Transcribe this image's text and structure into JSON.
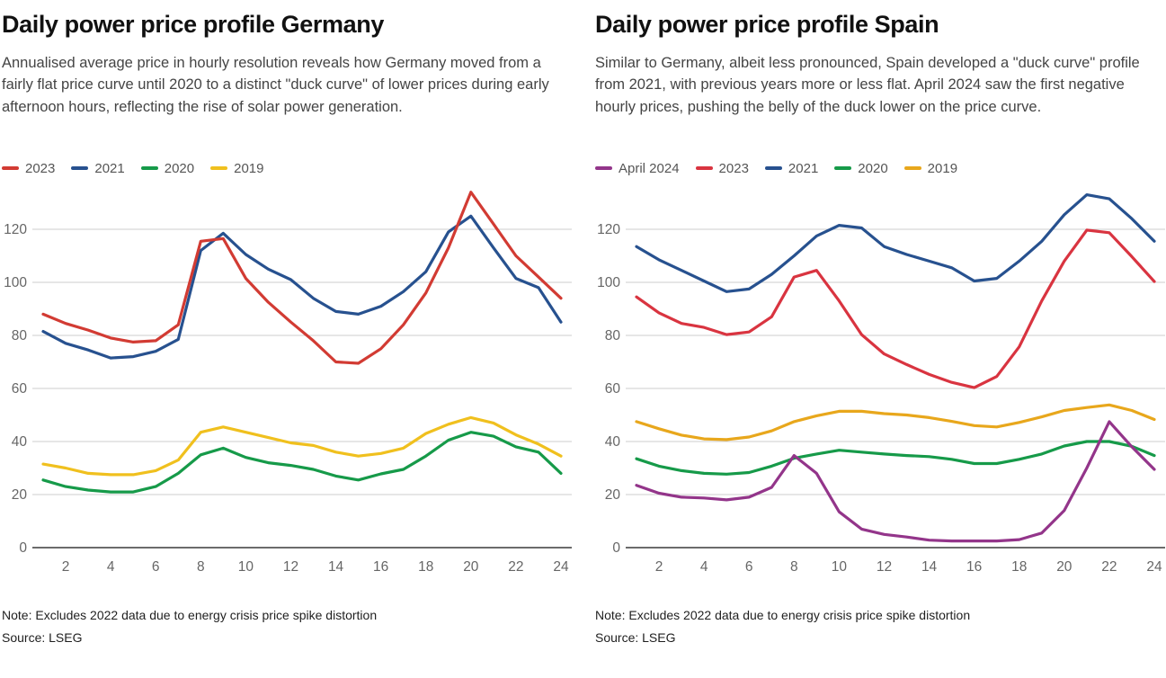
{
  "colors": {
    "grid": "#cccccc",
    "axis": "#3a3a3a",
    "tick_text": "#666666"
  },
  "chart_data": [
    {
      "type": "line",
      "title": "Daily power price profile Germany",
      "subtitle": "Annualised average price in hourly resolution reveals how Germany moved from a fairly flat price curve until 2020 to a distinct \"duck curve\" of lower prices during early afternoon hours, reflecting the rise of solar power generation.",
      "note": "Note: Excludes 2022 data due to energy crisis price spike distortion",
      "source": "Source: LSEG",
      "xlabel": "",
      "ylabel": "",
      "x": [
        1,
        2,
        3,
        4,
        5,
        6,
        7,
        8,
        9,
        10,
        11,
        12,
        13,
        14,
        15,
        16,
        17,
        18,
        19,
        20,
        21,
        22,
        23,
        24
      ],
      "x_tick_labels": [
        "2",
        "4",
        "6",
        "8",
        "10",
        "12",
        "14",
        "16",
        "18",
        "20",
        "22",
        "24"
      ],
      "x_ticks": [
        2,
        4,
        6,
        8,
        10,
        12,
        14,
        16,
        18,
        20,
        22,
        24
      ],
      "y_ticks": [
        0,
        20,
        40,
        60,
        80,
        100,
        120
      ],
      "ylim": [
        0,
        138
      ],
      "grid": "horizontal",
      "legend_position": "top",
      "series": [
        {
          "name": "2023",
          "color": "#d23b33",
          "values": [
            88,
            84.5,
            82,
            79,
            77.5,
            78,
            84,
            115.5,
            116.5,
            101.5,
            92.5,
            85,
            78,
            70,
            69.5,
            75,
            84,
            96,
            113,
            134,
            122,
            110,
            102,
            94
          ]
        },
        {
          "name": "2021",
          "color": "#27518f",
          "values": [
            81.5,
            77,
            74.5,
            71.5,
            72,
            74,
            78.5,
            112,
            118.5,
            110.5,
            105,
            101,
            94,
            89,
            88,
            91,
            96.5,
            104,
            119,
            125,
            113,
            101.5,
            98,
            85
          ]
        },
        {
          "name": "2020",
          "color": "#169a49",
          "values": [
            25.5,
            23,
            21.7,
            21,
            21,
            23,
            28,
            35,
            37.5,
            34,
            32,
            31,
            29.5,
            27,
            25.5,
            27.8,
            29.5,
            34.5,
            40.5,
            43.5,
            42,
            38,
            36,
            28
          ]
        },
        {
          "name": "2019",
          "color": "#f0c01e",
          "values": [
            31.5,
            30,
            28,
            27.5,
            27.5,
            29,
            33,
            43.5,
            45.5,
            43.5,
            41.5,
            39.5,
            38.5,
            36,
            34.5,
            35.5,
            37.5,
            43,
            46.5,
            49,
            47,
            42.5,
            39,
            34.5
          ]
        }
      ]
    },
    {
      "type": "line",
      "title": "Daily power price profile Spain",
      "subtitle": "Similar to Germany, albeit less pronounced, Spain developed a \"duck curve\" profile from 2021, with previous years more or less flat. April 2024 saw the first negative hourly prices, pushing the belly of the duck lower on the price curve.",
      "note": "Note: Excludes 2022 data due to energy crisis price spike distortion",
      "source": "Source: LSEG",
      "xlabel": "",
      "ylabel": "",
      "x": [
        1,
        2,
        3,
        4,
        5,
        6,
        7,
        8,
        9,
        10,
        11,
        12,
        13,
        14,
        15,
        16,
        17,
        18,
        19,
        20,
        21,
        22,
        23,
        24
      ],
      "x_tick_labels": [
        "2",
        "4",
        "6",
        "8",
        "10",
        "12",
        "14",
        "16",
        "18",
        "20",
        "22",
        "24"
      ],
      "x_ticks": [
        2,
        4,
        6,
        8,
        10,
        12,
        14,
        16,
        18,
        20,
        22,
        24
      ],
      "y_ticks": [
        0,
        20,
        40,
        60,
        80,
        100,
        120
      ],
      "ylim": [
        0,
        138
      ],
      "grid": "horizontal",
      "legend_position": "top",
      "series": [
        {
          "name": "April 2024",
          "color": "#93358a",
          "values": [
            23.5,
            20.5,
            19,
            18.7,
            18,
            19,
            22.7,
            34.7,
            28,
            13.5,
            7,
            5,
            4,
            2.8,
            2.5,
            2.5,
            2.5,
            3,
            5.5,
            14,
            30,
            47.5,
            38,
            29.5
          ]
        },
        {
          "name": "2023",
          "color": "#d93440",
          "values": [
            94.5,
            88.5,
            84.5,
            83,
            80.3,
            81.3,
            87,
            102,
            104.5,
            93,
            80.3,
            73,
            69,
            65.3,
            62.3,
            60.3,
            64.5,
            75.7,
            93,
            108,
            119.7,
            118.7,
            109.7,
            100.3
          ]
        },
        {
          "name": "2021",
          "color": "#27518f",
          "values": [
            113.5,
            108.5,
            104.5,
            100.5,
            96.5,
            97.5,
            103,
            110,
            117.5,
            121.5,
            120.5,
            113.5,
            110.5,
            108,
            105.5,
            100.5,
            101.5,
            108,
            115.5,
            125.5,
            133,
            131.5,
            124,
            115.5
          ]
        },
        {
          "name": "2020",
          "color": "#169a49",
          "values": [
            33.5,
            30.7,
            29,
            28,
            27.7,
            28.3,
            30.7,
            33.7,
            35.3,
            36.7,
            36,
            35.3,
            34.7,
            34.3,
            33.3,
            31.7,
            31.7,
            33.3,
            35.3,
            38.3,
            40,
            40,
            38.2,
            34.7
          ]
        },
        {
          "name": "2019",
          "color": "#e8a71c",
          "values": [
            47.5,
            44.8,
            42.4,
            41,
            40.7,
            41.7,
            44,
            47.5,
            49.7,
            51.4,
            51.4,
            50.5,
            50,
            49,
            47.6,
            46,
            45.5,
            47.2,
            49.3,
            51.7,
            52.8,
            53.8,
            51.7,
            48.3
          ]
        }
      ]
    }
  ]
}
